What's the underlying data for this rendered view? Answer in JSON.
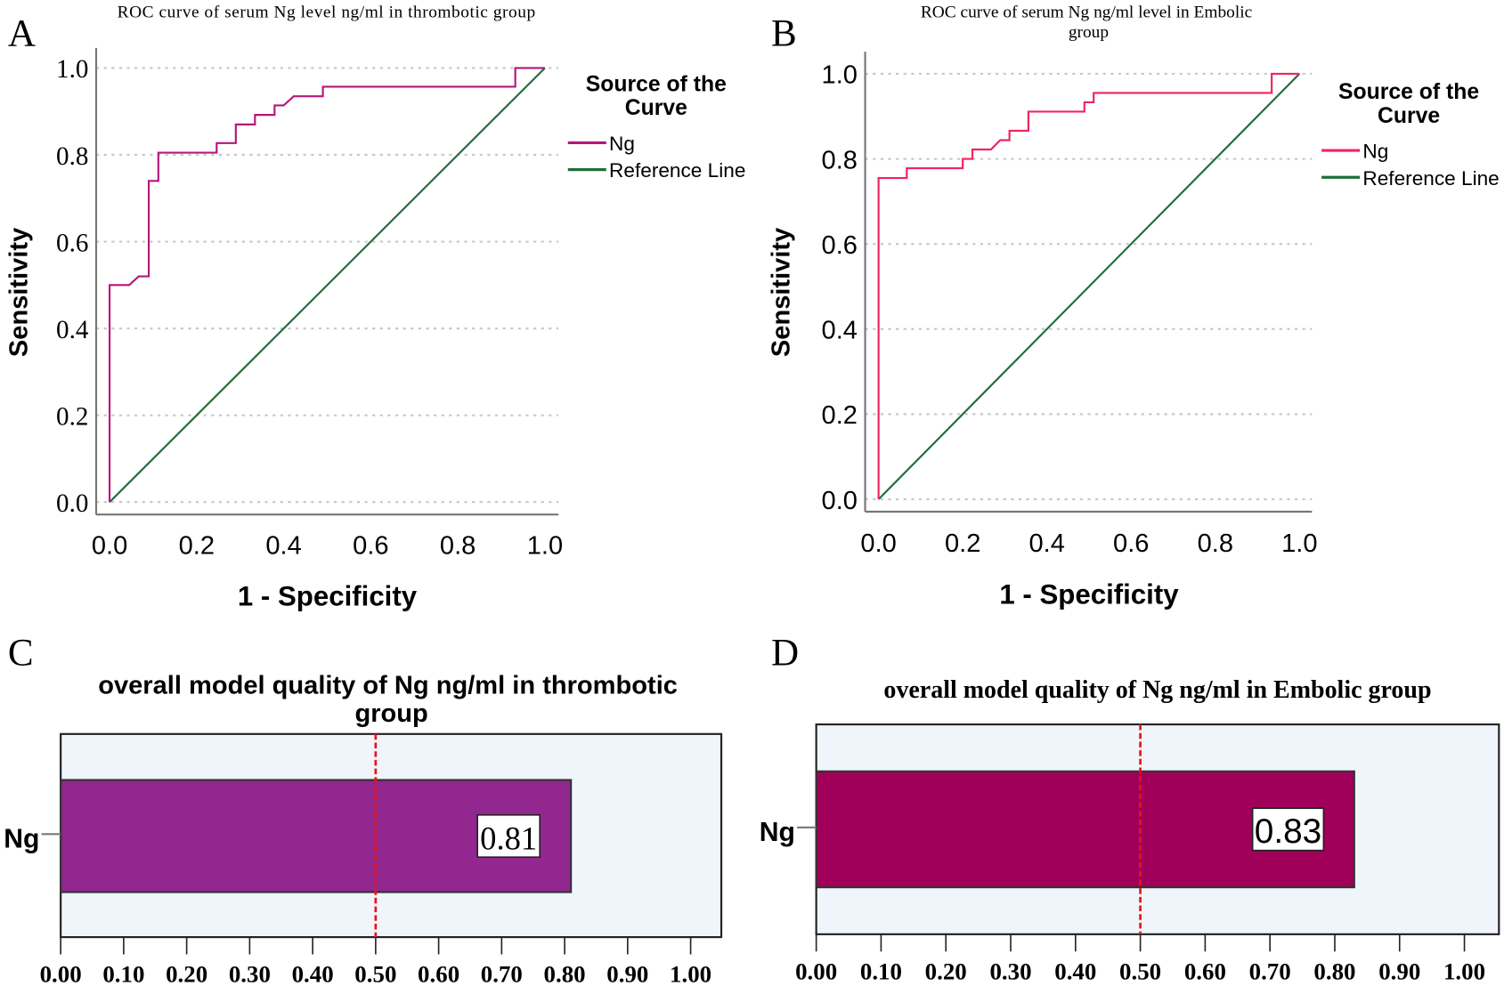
{
  "panel_letters": [
    "A",
    "B",
    "C",
    "D"
  ],
  "colors": {
    "ng_curve_a": "#b5177a",
    "ng_curve_b": "#f0245e",
    "reference_line": "#1f6e3a",
    "bar_c": "#92278f",
    "bar_d": "#a0005a",
    "threshold_line": "#e8141b",
    "plot_background_bar": "#eff5fa"
  },
  "chart_data": [
    {
      "type": "line",
      "panel": "A",
      "title": "ROC curve of serum Ng level ng/ml in thrombotic group",
      "xlabel": "1 - Specificity",
      "ylabel": "Sensitivity",
      "xlim": [
        0,
        1
      ],
      "ylim": [
        0,
        1
      ],
      "xticks": [
        "0.0",
        "0.2",
        "0.4",
        "0.6",
        "0.8",
        "1.0"
      ],
      "yticks": [
        "0.0",
        "0.2",
        "0.4",
        "0.6",
        "0.8",
        "1.0"
      ],
      "grid": "horizontal dotted",
      "legend": {
        "title": "Source of the Curve",
        "placement": "right",
        "entries": [
          "Ng",
          "Reference Line"
        ]
      },
      "series": [
        {
          "name": "Ng",
          "x": [
            0,
            0,
            0.045,
            0.067,
            0.09,
            0.09,
            0.112,
            0.112,
            0.246,
            0.246,
            0.29,
            0.29,
            0.334,
            0.334,
            0.379,
            0.379,
            0.4,
            0.423,
            0.49,
            0.49,
            0.932,
            0.932,
            1.0
          ],
          "y": [
            0,
            0.5,
            0.5,
            0.52,
            0.52,
            0.74,
            0.74,
            0.805,
            0.805,
            0.827,
            0.827,
            0.87,
            0.87,
            0.892,
            0.892,
            0.914,
            0.914,
            0.935,
            0.935,
            0.957,
            0.957,
            1.0,
            1.0
          ]
        },
        {
          "name": "Reference Line",
          "x": [
            0,
            1
          ],
          "y": [
            0,
            1
          ]
        }
      ]
    },
    {
      "type": "line",
      "panel": "B",
      "title": "ROC curve of serum Ng ng/ml level in Embolic group",
      "xlabel": "1 - Specificity",
      "ylabel": "Sensitivity",
      "xlim": [
        0,
        1
      ],
      "ylim": [
        0,
        1
      ],
      "xticks": [
        "0.0",
        "0.2",
        "0.4",
        "0.6",
        "0.8",
        "1.0"
      ],
      "yticks": [
        "0.0",
        "0.2",
        "0.4",
        "0.6",
        "0.8",
        "1.0"
      ],
      "grid": "horizontal dotted",
      "legend": {
        "title": "Source of the Curve",
        "placement": "right",
        "entries": [
          "Ng",
          "Reference Line"
        ]
      },
      "series": [
        {
          "name": "Ng",
          "x": [
            0,
            0,
            0.067,
            0.067,
            0.2,
            0.2,
            0.223,
            0.223,
            0.267,
            0.289,
            0.311,
            0.311,
            0.356,
            0.356,
            0.489,
            0.489,
            0.511,
            0.511,
            0.934,
            0.934,
            1.0
          ],
          "y": [
            0,
            0.755,
            0.755,
            0.778,
            0.778,
            0.8,
            0.8,
            0.822,
            0.822,
            0.844,
            0.844,
            0.866,
            0.866,
            0.911,
            0.911,
            0.933,
            0.933,
            0.955,
            0.955,
            1.0,
            1.0
          ]
        },
        {
          "name": "Reference Line",
          "x": [
            0,
            1
          ],
          "y": [
            0,
            1
          ]
        }
      ]
    },
    {
      "type": "bar",
      "panel": "C",
      "orientation": "horizontal",
      "title": "overall model quality of Ng ng/ml in thrombotic group",
      "categories": [
        "Ng"
      ],
      "values": [
        0.81
      ],
      "data_labels": [
        "0.81"
      ],
      "xlim": [
        0,
        1.05
      ],
      "xticks": [
        "0.00",
        "0.10",
        "0.20",
        "0.30",
        "0.40",
        "0.50",
        "0.60",
        "0.70",
        "0.80",
        "0.90",
        "1.00"
      ],
      "reference_line": 0.5
    },
    {
      "type": "bar",
      "panel": "D",
      "orientation": "horizontal",
      "title": "overall model quality of Ng ng/ml in Embolic group",
      "categories": [
        "Ng"
      ],
      "values": [
        0.83
      ],
      "data_labels": [
        "0.83"
      ],
      "xlim": [
        0,
        1.05
      ],
      "xticks": [
        "0.00",
        "0.10",
        "0.20",
        "0.30",
        "0.40",
        "0.50",
        "0.60",
        "0.70",
        "0.80",
        "0.90",
        "1.00"
      ],
      "reference_line": 0.5
    }
  ]
}
